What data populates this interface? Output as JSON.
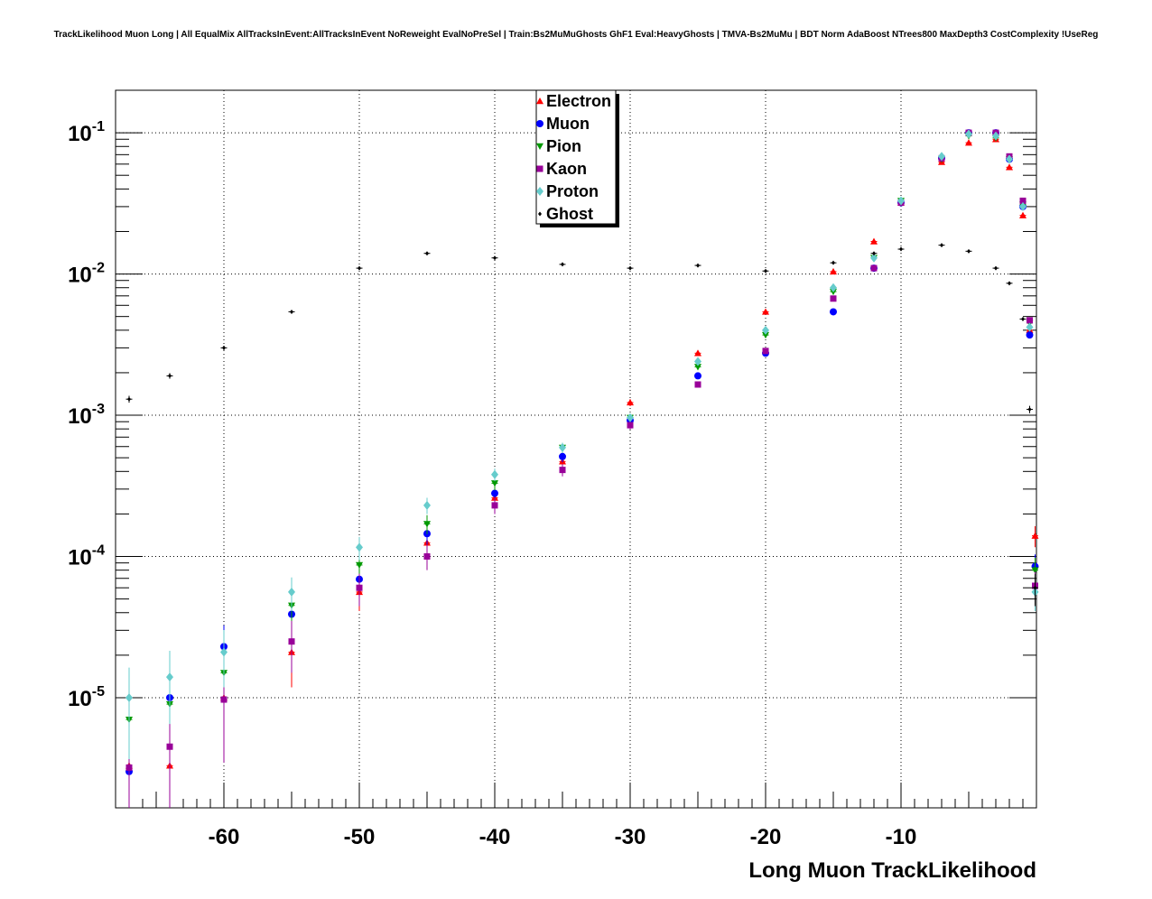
{
  "chart_data": {
    "type": "scatter",
    "title": "TrackLikelihood Muon Long | All EqualMix AllTracksInEvent:AllTracksInEvent NoReweight EvalNoPreSel | Train:Bs2MuMuGhosts GhF1 Eval:HeavyGhosts | TMVA-Bs2MuMu | BDT Norm AdaBoost NTrees800 MaxDepth3 CostComplexity !UseReg",
    "xlabel": "Long Muon TrackLikelihood",
    "ylabel": "",
    "xlim": [
      -68,
      0
    ],
    "ylim": [
      1.66e-06,
      0.2
    ],
    "yscale": "log",
    "grid": true,
    "legend_position": "top-center",
    "xticks": [
      -60,
      -50,
      -40,
      -30,
      -20,
      -10
    ],
    "xtick_labels": [
      "-60",
      "-50",
      "-40",
      "-30",
      "-20",
      "-10"
    ],
    "yticks": [
      {
        "base": "10",
        "exp": "-1",
        "v": 0.1
      },
      {
        "base": "10",
        "exp": "-2",
        "v": 0.01
      },
      {
        "base": "10",
        "exp": "-3",
        "v": 0.001
      },
      {
        "base": "10",
        "exp": "-4",
        "v": 0.0001
      },
      {
        "base": "10",
        "exp": "-5",
        "v": 1e-05
      }
    ],
    "x": [
      -67,
      -64,
      -60,
      -55,
      -50,
      -45,
      -40,
      -35,
      -30,
      -25,
      -20,
      -15,
      -12,
      -10,
      -7,
      -5,
      -3,
      -2,
      -1,
      -0.5,
      -0.1
    ],
    "series": [
      {
        "name": "Electron",
        "color": "#ff0000",
        "marker": "triangle-up",
        "values": [
          3.3e-06,
          3.3e-06,
          1e-05,
          2.1e-05,
          5.6e-05,
          0.000125,
          0.00026,
          0.00047,
          0.00123,
          0.00275,
          0.0054,
          0.0104,
          0.017,
          0.032,
          0.062,
          0.085,
          0.09,
          0.057,
          0.026,
          0.004,
          0.00014
        ]
      },
      {
        "name": "Muon",
        "color": "#0000ff",
        "marker": "circle",
        "values": [
          3e-06,
          1e-05,
          2.3e-05,
          3.9e-05,
          6.9e-05,
          0.000145,
          0.00028,
          0.00051,
          0.00092,
          0.0019,
          0.00275,
          0.0054,
          0.011,
          0.032,
          0.066,
          0.1,
          0.1,
          0.065,
          0.03,
          0.0037,
          8.5e-05
        ]
      },
      {
        "name": "Pion",
        "color": "#009900",
        "marker": "triangle-down",
        "values": [
          7e-06,
          9e-06,
          1.5e-05,
          4.5e-05,
          8.7e-05,
          0.00017,
          0.00033,
          0.00059,
          0.00096,
          0.0022,
          0.0037,
          0.0075,
          0.013,
          0.033,
          0.065,
          0.095,
          0.092,
          0.065,
          0.031,
          0.0045,
          8e-05
        ]
      },
      {
        "name": "Kaon",
        "color": "#990099",
        "marker": "square",
        "values": [
          3.2e-06,
          4.5e-06,
          9.7e-06,
          2.5e-05,
          6e-05,
          0.0001,
          0.00023,
          0.00041,
          0.00085,
          0.00165,
          0.00285,
          0.0067,
          0.011,
          0.032,
          0.066,
          0.1,
          0.1,
          0.068,
          0.033,
          0.0047,
          6.2e-05
        ]
      },
      {
        "name": "Proton",
        "color": "#66cccc",
        "marker": "diamond",
        "values": [
          1e-05,
          1.4e-05,
          2.1e-05,
          5.6e-05,
          0.000116,
          0.00023,
          0.00038,
          0.00059,
          0.00096,
          0.0024,
          0.004,
          0.008,
          0.013,
          0.033,
          0.068,
          0.098,
          0.095,
          0.065,
          0.03,
          0.0042,
          5.6e-05
        ]
      },
      {
        "name": "Ghost",
        "color": "#000000",
        "marker": "small-diamond",
        "values": [
          0.0013,
          0.0019,
          0.003,
          0.0054,
          0.011,
          0.014,
          0.013,
          0.0117,
          0.011,
          0.0115,
          0.0105,
          0.012,
          0.014,
          0.015,
          0.016,
          0.0145,
          0.011,
          0.0086,
          0.0048,
          0.0011,
          6e-05
        ]
      }
    ]
  }
}
